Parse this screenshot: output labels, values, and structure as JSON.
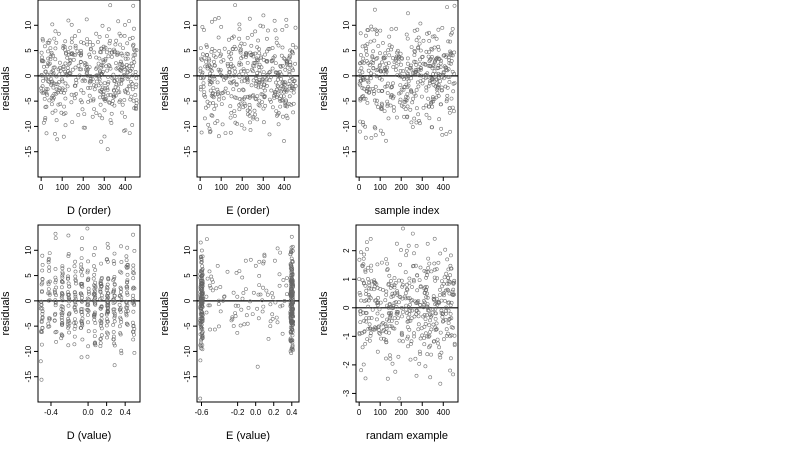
{
  "chart_data": [
    {
      "type": "scatter",
      "xlabel": "D (order)",
      "ylabel": "residuals",
      "xlim": [
        -15,
        470
      ],
      "ylim": [
        -20,
        15
      ],
      "xticks": [
        0,
        100,
        200,
        300,
        400
      ],
      "xtick_labels": [
        "0",
        "100",
        "200",
        "300",
        "400"
      ],
      "yticks": [
        -15,
        -10,
        -5,
        0,
        5,
        10
      ],
      "ytick_labels": [
        "-15",
        "-10",
        "-5",
        "0",
        "5",
        "10"
      ],
      "zero_line": true,
      "n_points": 450,
      "x_kind": "index",
      "y_sd": 5,
      "x_min": 0,
      "x_max": 455
    },
    {
      "type": "scatter",
      "xlabel": "E (order)",
      "ylabel": "residuals",
      "xlim": [
        -15,
        470
      ],
      "ylim": [
        -20,
        15
      ],
      "xticks": [
        0,
        100,
        200,
        300,
        400
      ],
      "xtick_labels": [
        "0",
        "100",
        "200",
        "300",
        "400"
      ],
      "yticks": [
        -15,
        -10,
        -5,
        0,
        5,
        10
      ],
      "ytick_labels": [
        "-15",
        "-10",
        "-5",
        "0",
        "5",
        "10"
      ],
      "zero_line": true,
      "n_points": 450,
      "x_kind": "index",
      "y_sd": 5,
      "x_min": 0,
      "x_max": 455
    },
    {
      "type": "scatter",
      "xlabel": "sample index",
      "ylabel": "residuals",
      "xlim": [
        -15,
        470
      ],
      "ylim": [
        -20,
        15
      ],
      "xticks": [
        0,
        100,
        200,
        300,
        400
      ],
      "xtick_labels": [
        "0",
        "100",
        "200",
        "300",
        "400"
      ],
      "yticks": [
        -15,
        -10,
        -5,
        0,
        5,
        10
      ],
      "ytick_labels": [
        "-15",
        "-10",
        "-5",
        "0",
        "5",
        "10"
      ],
      "zero_line": true,
      "n_points": 450,
      "x_kind": "index",
      "y_sd": 5,
      "x_min": 0,
      "x_max": 455
    },
    {
      "type": "scatter",
      "xlabel": "D (value)",
      "ylabel": "residuals",
      "xlim": [
        -0.54,
        0.56
      ],
      "ylim": [
        -20,
        15
      ],
      "xticks": [
        -0.4,
        0,
        0.2,
        0.4
      ],
      "xtick_labels": [
        "-0.4",
        "0.0",
        "0.2",
        "0.4"
      ],
      "yticks": [
        -15,
        -10,
        -5,
        0,
        5,
        10
      ],
      "ytick_labels": [
        "-15",
        "-10",
        "-5",
        "0",
        "5",
        "10"
      ],
      "zero_line": true,
      "n_points": 450,
      "x_kind": "columns_d",
      "y_sd": 5,
      "x_columns": [
        -0.5,
        -0.42,
        -0.35,
        -0.28,
        -0.21,
        -0.14,
        -0.07,
        0.0,
        0.07,
        0.14,
        0.21,
        0.28,
        0.35,
        0.42,
        0.49
      ]
    },
    {
      "type": "scatter",
      "xlabel": "E (value)",
      "ylabel": "residuals",
      "xlim": [
        -0.65,
        0.48
      ],
      "ylim": [
        -20,
        15
      ],
      "xticks": [
        -0.6,
        -0.2,
        0.0,
        0.2,
        0.4
      ],
      "xtick_labels": [
        "-0.6",
        "-0.2",
        "0.0",
        "0.2",
        "0.4"
      ],
      "yticks": [
        -15,
        -10,
        -5,
        0,
        5,
        10
      ],
      "ytick_labels": [
        "-15",
        "-10",
        "-5",
        "0",
        "5",
        "10"
      ],
      "zero_line": true,
      "n_points": 450,
      "x_kind": "columns_e",
      "y_sd": 5,
      "x_columns": [
        -0.6,
        0.4
      ]
    },
    {
      "type": "scatter",
      "xlabel": "randam example",
      "ylabel": "residuals",
      "xlim": [
        -15,
        470
      ],
      "ylim": [
        -3.3,
        2.9
      ],
      "xticks": [
        0,
        100,
        200,
        300,
        400
      ],
      "xtick_labels": [
        "0",
        "100",
        "200",
        "300",
        "400"
      ],
      "yticks": [
        -3,
        -2,
        -1,
        0,
        1,
        2
      ],
      "ytick_labels": [
        "-3",
        "-2",
        "-1",
        "0",
        "1",
        "2"
      ],
      "zero_line": true,
      "n_points": 450,
      "x_kind": "index",
      "y_sd": 1,
      "x_min": 0,
      "x_max": 455
    }
  ]
}
